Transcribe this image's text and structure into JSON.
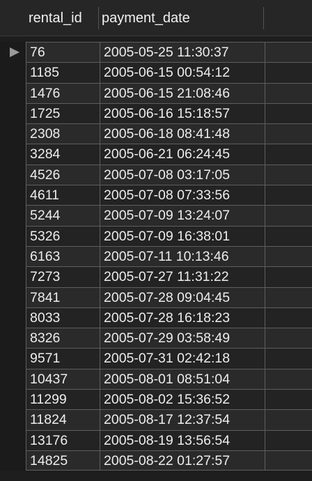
{
  "columns": {
    "rental_id": "rental_id",
    "payment_date": "payment_date"
  },
  "rows": [
    {
      "rental_id": "76",
      "payment_date": "2005-05-25 11:30:37"
    },
    {
      "rental_id": "1185",
      "payment_date": "2005-06-15 00:54:12"
    },
    {
      "rental_id": "1476",
      "payment_date": "2005-06-15 21:08:46"
    },
    {
      "rental_id": "1725",
      "payment_date": "2005-06-16 15:18:57"
    },
    {
      "rental_id": "2308",
      "payment_date": "2005-06-18 08:41:48"
    },
    {
      "rental_id": "3284",
      "payment_date": "2005-06-21 06:24:45"
    },
    {
      "rental_id": "4526",
      "payment_date": "2005-07-08 03:17:05"
    },
    {
      "rental_id": "4611",
      "payment_date": "2005-07-08 07:33:56"
    },
    {
      "rental_id": "5244",
      "payment_date": "2005-07-09 13:24:07"
    },
    {
      "rental_id": "5326",
      "payment_date": "2005-07-09 16:38:01"
    },
    {
      "rental_id": "6163",
      "payment_date": "2005-07-11 10:13:46"
    },
    {
      "rental_id": "7273",
      "payment_date": "2005-07-27 11:31:22"
    },
    {
      "rental_id": "7841",
      "payment_date": "2005-07-28 09:04:45"
    },
    {
      "rental_id": "8033",
      "payment_date": "2005-07-28 16:18:23"
    },
    {
      "rental_id": "8326",
      "payment_date": "2005-07-29 03:58:49"
    },
    {
      "rental_id": "9571",
      "payment_date": "2005-07-31 02:42:18"
    },
    {
      "rental_id": "10437",
      "payment_date": "2005-08-01 08:51:04"
    },
    {
      "rental_id": "11299",
      "payment_date": "2005-08-02 15:36:52"
    },
    {
      "rental_id": "11824",
      "payment_date": "2005-08-17 12:37:54"
    },
    {
      "rental_id": "13176",
      "payment_date": "2005-08-19 13:56:54"
    },
    {
      "rental_id": "14825",
      "payment_date": "2005-08-22 01:27:57"
    }
  ],
  "colors": {
    "background": "#1e1e1e",
    "cell_background": "#2a2a2a",
    "cell_alt_background": "#232323",
    "grid_line": "#5e5e5e",
    "text": "#ededed",
    "row_indicator": "#9a9a9a"
  },
  "icons": {
    "current_row": "triangle-right-icon"
  }
}
